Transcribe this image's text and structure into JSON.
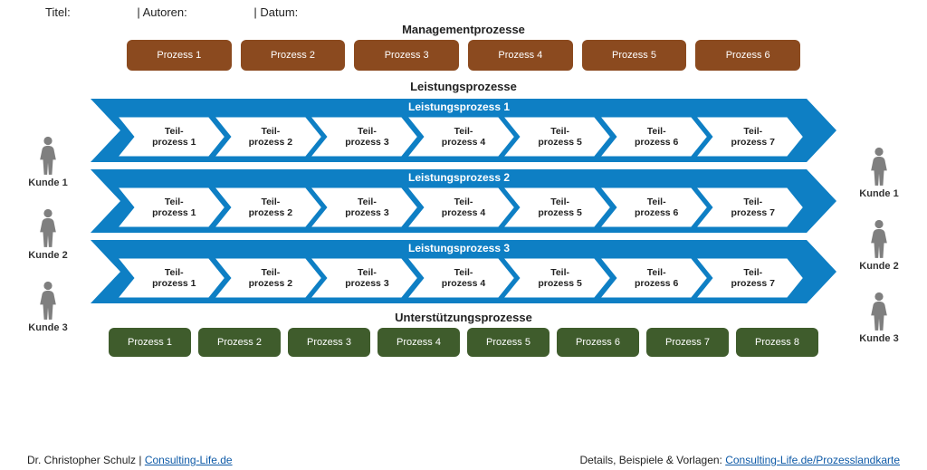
{
  "meta": {
    "title_label": "Titel:",
    "authors_label": "| Autoren:",
    "date_label": "| Datum:"
  },
  "sections": {
    "mgmt": "Managementprozesse",
    "perf": "Leistungsprozesse",
    "supp": "Unterstützungsprozesse"
  },
  "colors": {
    "brown": "#8b4a1f",
    "green": "#3f5c2c",
    "blue": "#0e7fc4",
    "gray": "#7f7f7f",
    "link": "#0e5aa7"
  },
  "mgmt_processes": [
    "Prozess 1",
    "Prozess 2",
    "Prozess 3",
    "Prozess 4",
    "Prozess 5",
    "Prozess 6"
  ],
  "supp_processes": [
    "Prozess 1",
    "Prozess 2",
    "Prozess 3",
    "Prozess 4",
    "Prozess 5",
    "Prozess 6",
    "Prozess 7",
    "Prozess 8"
  ],
  "customers_left": [
    "Kunde 1",
    "Kunde 2",
    "Kunde 3"
  ],
  "customers_right": [
    "Kunde 1",
    "Kunde 2",
    "Kunde 3"
  ],
  "leistungsprozesse": [
    {
      "title": "Leistungsprozess 1",
      "steps": [
        "Teil-\nprozess 1",
        "Teil-\nprozess 2",
        "Teil-\nprozess 3",
        "Teil-\nprozess 4",
        "Teil-\nprozess 5",
        "Teil-\nprozess 6",
        "Teil-\nprozess 7"
      ]
    },
    {
      "title": "Leistungsprozess 2",
      "steps": [
        "Teil-\nprozess 1",
        "Teil-\nprozess 2",
        "Teil-\nprozess 3",
        "Teil-\nprozess 4",
        "Teil-\nprozess 5",
        "Teil-\nprozess 6",
        "Teil-\nprozess 7"
      ]
    },
    {
      "title": "Leistungsprozess 3",
      "steps": [
        "Teil-\nprozess 1",
        "Teil-\nprozess 2",
        "Teil-\nprozess 3",
        "Teil-\nprozess 4",
        "Teil-\nprozess 5",
        "Teil-\nprozess 6",
        "Teil-\nprozess 7"
      ]
    }
  ],
  "footer": {
    "author": "Dr. Christopher Schulz",
    "sep": " | ",
    "site": "Consulting-Life.de",
    "details_label": "Details, Beispiele & Vorlagen: ",
    "details_link": "Consulting-Life.de/Prozesslandkarte"
  }
}
